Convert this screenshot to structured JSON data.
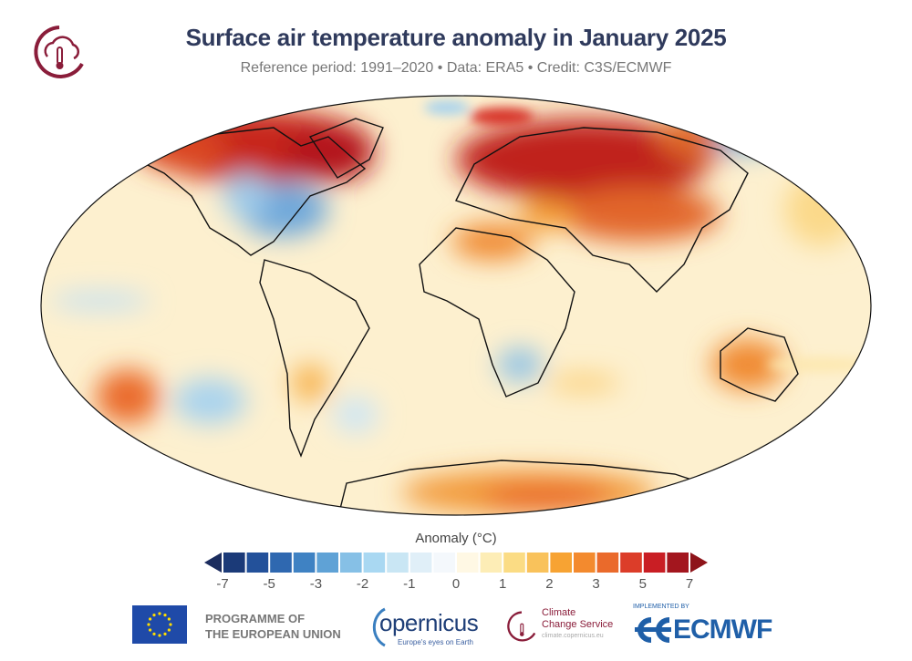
{
  "header": {
    "title": "Surface air temperature anomaly in January 2025",
    "subtitle": "Reference period: 1991–2020 • Data: ERA5 • Credit: C3S/ECMWF"
  },
  "map": {
    "projection": "Robinson",
    "variable": "surface air temperature anomaly",
    "icon": "world-map-anomaly"
  },
  "colorbar": {
    "title": "Anomaly (°C)",
    "ticks": [
      "-7",
      "-5",
      "-3",
      "-2",
      "-1",
      "0",
      "1",
      "2",
      "3",
      "5",
      "7"
    ],
    "colors": [
      "#1b3a78",
      "#23519a",
      "#2f68b0",
      "#3f82c3",
      "#5fa2d6",
      "#86c0e6",
      "#a9d8f2",
      "#c9e6f4",
      "#e0eff8",
      "#f4f8fc",
      "#fff8e4",
      "#fdedb6",
      "#fbdc84",
      "#f9c25b",
      "#f7a333",
      "#f38a2e",
      "#ea6a2b",
      "#dc3d29",
      "#c91e24",
      "#a3161e"
    ],
    "under_color": "#1b2c5e",
    "over_color": "#8e141a"
  },
  "footer": {
    "eu_text_line1": "PROGRAMME OF",
    "eu_text_line2": "THE EUROPEAN UNION",
    "copernicus": "opernicus",
    "copernicus_tagline": "Europe's eyes on Earth",
    "c3s_line1": "Climate",
    "c3s_line2": "Change Service",
    "c3s_url": "climate.copernicus.eu",
    "ecmwf_implemented": "IMPLEMENTED BY",
    "ecmwf": "ECMWF"
  }
}
